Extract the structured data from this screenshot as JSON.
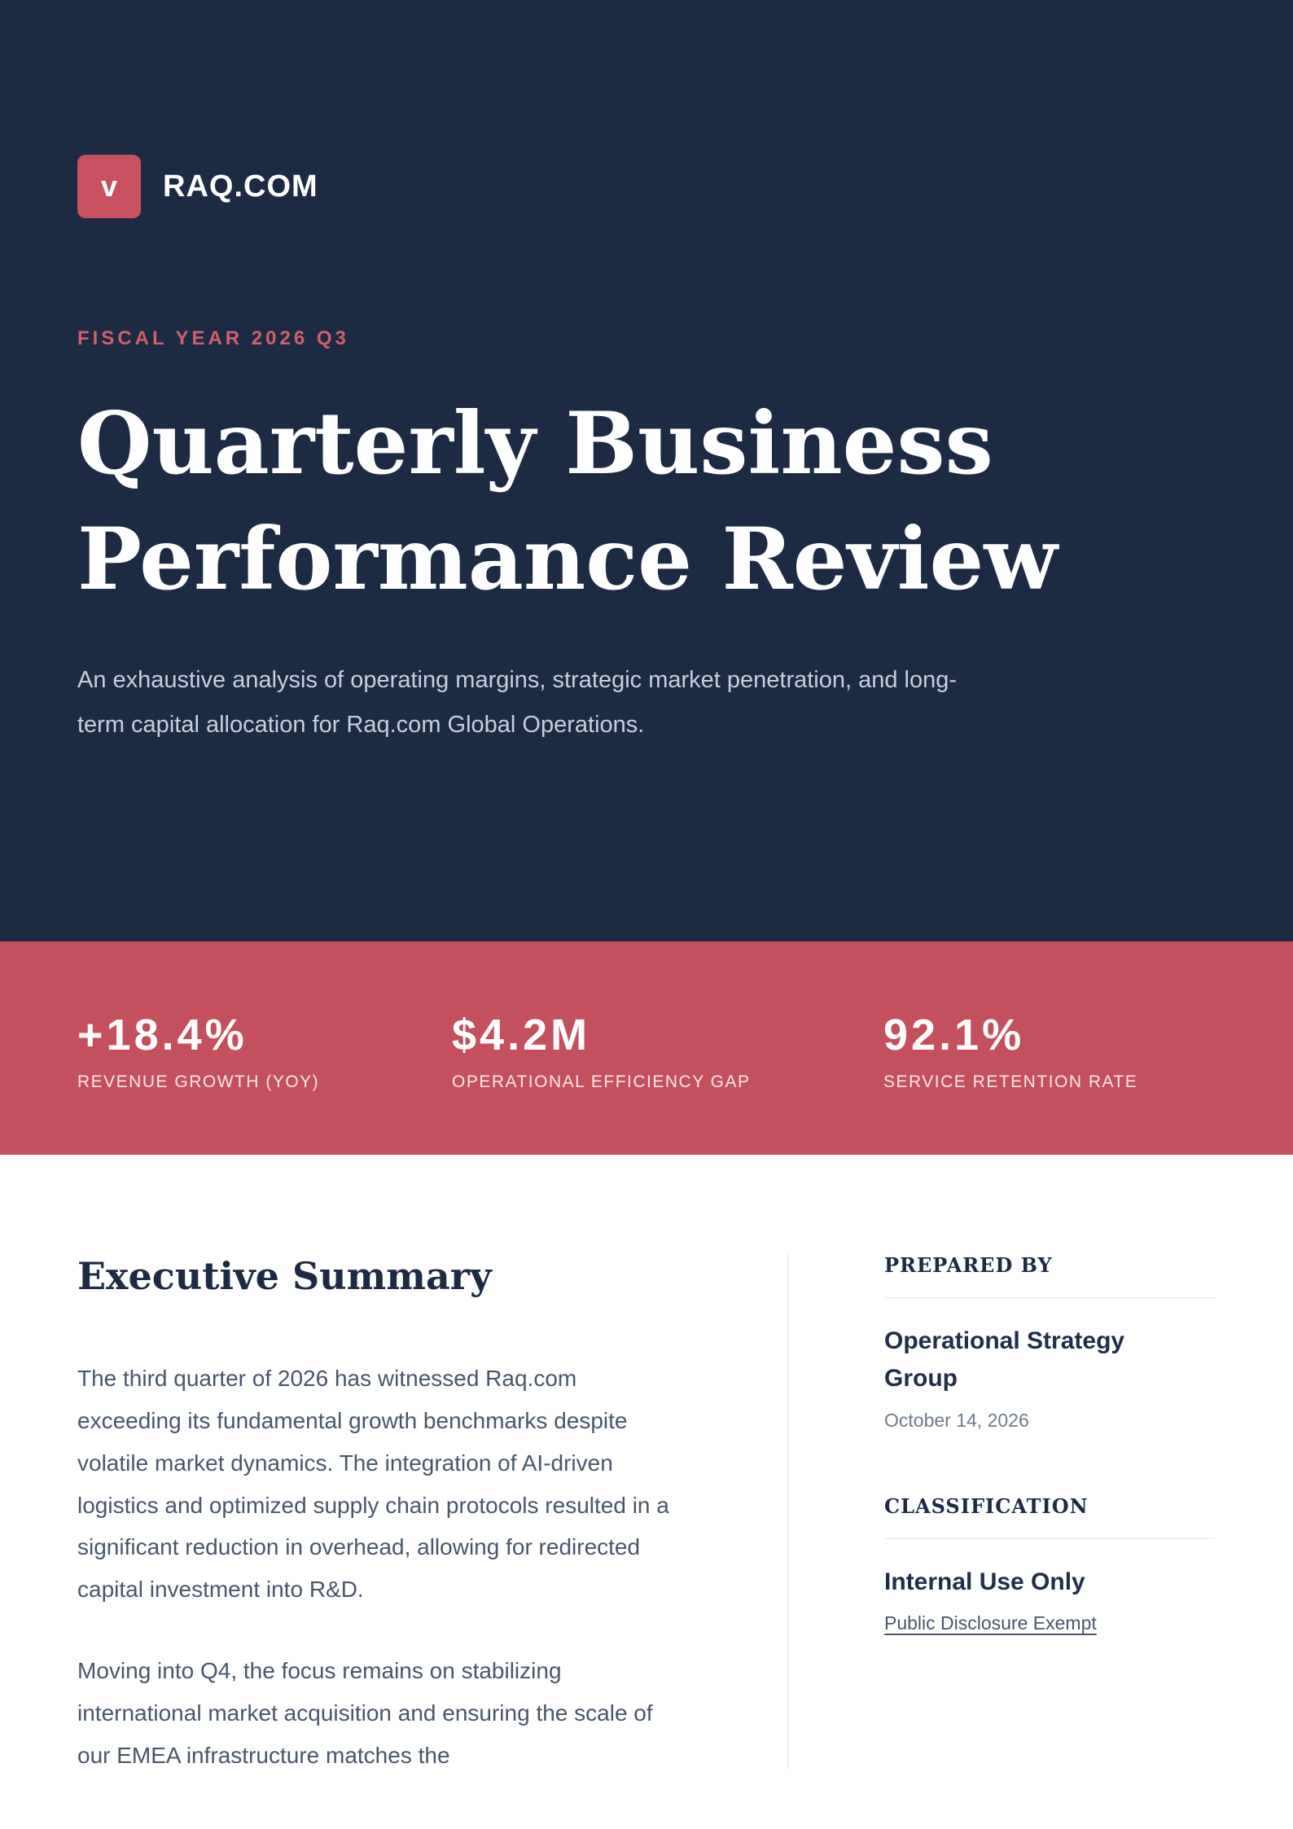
{
  "colors": {
    "navy_background": "#1d2a44",
    "band_red": "#c4505e",
    "logo_red": "#c9515f",
    "eyebrow_red": "#d25f6d",
    "body_text": "#48566a",
    "muted_text": "#6f7a8c"
  },
  "brand": {
    "logo_letter": "v",
    "name": "RAQ.COM"
  },
  "hero": {
    "eyebrow": "FISCAL YEAR 2026 Q3",
    "title": "Quarterly Business Performance Review",
    "subtitle": "An exhaustive analysis of operating margins, strategic market penetration, and long-term capital allocation for Raq.com Global Operations."
  },
  "stats": {
    "items": [
      {
        "value": "+18.4%",
        "label": "REVENUE GROWTH (YOY)"
      },
      {
        "value": "$4.2M",
        "label": "OPERATIONAL EFFICIENCY GAP"
      },
      {
        "value": "92.1%",
        "label": "SERVICE RETENTION RATE"
      }
    ]
  },
  "summary": {
    "heading": "Executive Summary",
    "paragraphs": [
      "The third quarter of 2026 has witnessed Raq.com exceeding its fundamental growth benchmarks despite volatile market dynamics. The integration of AI-driven logistics and optimized supply chain protocols resulted in a significant reduction in overhead, allowing for redirected capital investment into R&D.",
      "Moving into Q4, the focus remains on stabilizing international market acquisition and ensuring the scale of our EMEA infrastructure matches the"
    ]
  },
  "sidebar": {
    "prepared_by": {
      "heading": "PREPARED BY",
      "title": "Operational Strategy Group",
      "date": "October 14, 2026"
    },
    "classification": {
      "heading": "CLASSIFICATION",
      "title": "Internal Use Only",
      "link": "Public Disclosure Exempt"
    }
  }
}
